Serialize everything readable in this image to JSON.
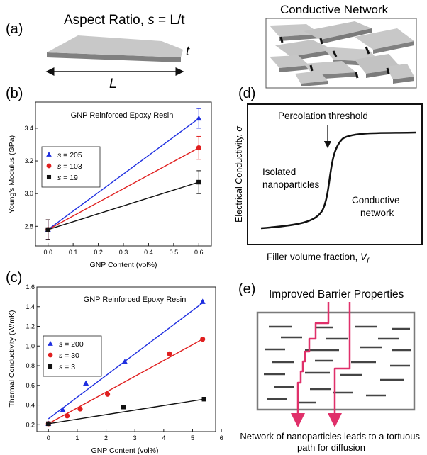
{
  "panel_labels": {
    "a": "(a)",
    "b": "(b)",
    "c": "(c)",
    "d": "(d)",
    "e": "(e)"
  },
  "panel_a": {
    "title_prefix": "Aspect Ratio, ",
    "title_symbol": "s",
    "title_suffix": " = L/t",
    "length_label": "L",
    "thickness_label": "t",
    "network_title": "Conductive Network",
    "colors": {
      "flake_top": "#c8c8c8",
      "flake_side": "#808080",
      "dark_edge": "#111111"
    }
  },
  "panel_d": {
    "ylabel_text": "Electrical Conductivity, ",
    "ylabel_symbol": "σ",
    "xlabel_text": "Filler volume fraction, ",
    "xlabel_symbol": "V",
    "xlabel_sub": "f",
    "percolation_label": "Percolation threshold",
    "left_label_line1": "Isolated",
    "left_label_line2": "nanoparticles",
    "right_label_line1": "Conductive",
    "right_label_line2": "network"
  },
  "panel_e": {
    "title": "Improved Barrier Properties",
    "caption_line1": "Network of nanoparticles leads to a tortuous",
    "caption_line2": "path for diffusion",
    "colors": {
      "path": "#e0306a",
      "box": "#7a7a7a",
      "flake": "#444444"
    }
  },
  "chart_data": [
    {
      "type": "scatter",
      "title": "GNP Reinforced Epoxy Resin",
      "xlabel": "GNP Content (vol%)",
      "ylabel": "Young's Modulus (GPa)",
      "xlim": [
        -0.05,
        0.65
      ],
      "ylim": [
        2.68,
        3.56
      ],
      "xticks": [
        "0.0",
        "0.1",
        "0.2",
        "0.3",
        "0.4",
        "0.5",
        "0.6"
      ],
      "yticks": [
        "2.8",
        "3.0",
        "3.2",
        "3.4"
      ],
      "legend": "upper-left",
      "series": [
        {
          "symbol": "s",
          "name": " = 205",
          "marker": "triangle",
          "color": "#1f2fe0",
          "x": [
            0.0,
            0.6
          ],
          "y": [
            2.78,
            3.46
          ],
          "err": [
            0.06,
            0.06
          ]
        },
        {
          "symbol": "s",
          "name": " = 103",
          "marker": "circle",
          "color": "#e01f1f",
          "x": [
            0.0,
            0.6
          ],
          "y": [
            2.78,
            3.28
          ],
          "err": [
            0.06,
            0.07
          ]
        },
        {
          "symbol": "s",
          "name": " = 19",
          "marker": "square",
          "color": "#111111",
          "x": [
            0.0,
            0.6
          ],
          "y": [
            2.78,
            3.07
          ],
          "err": [
            0.06,
            0.07
          ]
        }
      ]
    },
    {
      "type": "scatter",
      "title": "GNP Reinforced Epoxy Resin",
      "xlabel": "GNP Content (vol%)",
      "ylabel": "Thermal Conductivity (W/mK)",
      "xlim": [
        -0.4,
        5.8
      ],
      "ylim": [
        0.13,
        1.6
      ],
      "xticks": [
        "0",
        "1",
        "2",
        "3",
        "4",
        "5",
        "6"
      ],
      "yticks": [
        "0.2",
        "0.4",
        "0.6",
        "0.8",
        "1.0",
        "1.2",
        "1.4",
        "1.6"
      ],
      "legend": "lower-left",
      "series": [
        {
          "symbol": "s",
          "name": " = 200",
          "marker": "triangle",
          "color": "#1f2fe0",
          "x": [
            0.0,
            0.5,
            1.3,
            2.65,
            5.35
          ],
          "y": [
            0.21,
            0.35,
            0.62,
            0.84,
            1.45
          ],
          "fit": [
            [
              0.0,
              0.26
            ],
            [
              5.4,
              1.45
            ]
          ]
        },
        {
          "symbol": "s",
          "name": " = 30",
          "marker": "circle",
          "color": "#e01f1f",
          "x": [
            0.0,
            0.65,
            1.1,
            2.05,
            4.2,
            5.35
          ],
          "y": [
            0.21,
            0.29,
            0.36,
            0.51,
            0.92,
            1.07
          ],
          "fit": [
            [
              0.0,
              0.21
            ],
            [
              5.35,
              1.07
            ]
          ]
        },
        {
          "symbol": "s",
          "name": " = 3",
          "marker": "square",
          "color": "#111111",
          "x": [
            0.0,
            2.6,
            5.4
          ],
          "y": [
            0.21,
            0.38,
            0.46
          ],
          "fit": [
            [
              0.0,
              0.21
            ],
            [
              5.4,
              0.46
            ]
          ]
        }
      ]
    }
  ]
}
